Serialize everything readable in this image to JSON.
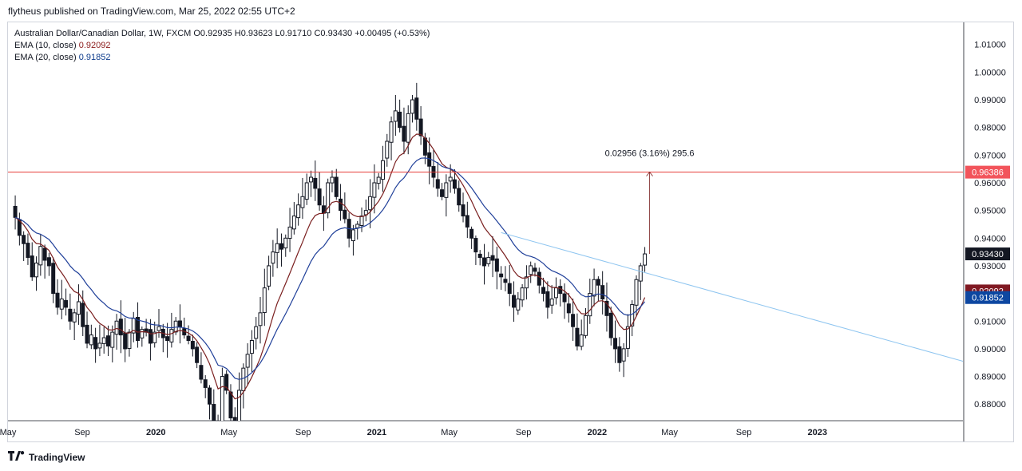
{
  "publisher_line": "flytheus published on TradingView.com, Mar 25, 2022 02:55 UTC+2",
  "legend": {
    "symbol": "Australian Dollar/Canadian Dollar, 1W, FXCM",
    "ohlc": "O0.92935  H0.93623  L0.91710  C0.93430  +0.00495 (+0.53%)",
    "ema10_label": "EMA (10, close)",
    "ema10_value": "0.92092",
    "ema20_label": "EMA (20, close)",
    "ema20_value": "0.91852"
  },
  "brand": "TradingView",
  "colors": {
    "up": "#131722",
    "down": "#131722",
    "ema10": "#7a1f1f",
    "ema20": "#1f3f99",
    "resistance": "#e53935",
    "trendline": "#8ec5f0",
    "measure": "#7a1f1f",
    "badge_price": "#131722",
    "badge_resistance": "#f2545b",
    "badge_ema10": "#801922",
    "badge_ema20": "#0d47a1"
  },
  "chart_data": {
    "type": "candlestick",
    "timeframe": "1W",
    "y_axis": {
      "ylim": [
        0.874,
        1.018
      ],
      "ticks": [
        "0.88000",
        "0.89000",
        "0.90000",
        "0.91000",
        "0.92000",
        "0.93000",
        "0.94000",
        "0.95000",
        "0.96000",
        "0.97000",
        "0.98000",
        "0.99000",
        "1.00000",
        "1.01000"
      ]
    },
    "x_axis": {
      "start": "2019-05-01",
      "end": "2023-08-30",
      "ticks": [
        {
          "label": "May",
          "date": "2019-05-01"
        },
        {
          "label": "Sep",
          "date": "2019-09-01"
        },
        {
          "label": "2020",
          "date": "2020-01-01"
        },
        {
          "label": "May",
          "date": "2020-05-01"
        },
        {
          "label": "Sep",
          "date": "2020-09-01"
        },
        {
          "label": "2021",
          "date": "2021-01-01"
        },
        {
          "label": "May",
          "date": "2021-05-01"
        },
        {
          "label": "Sep",
          "date": "2021-09-01"
        },
        {
          "label": "2022",
          "date": "2022-01-01"
        },
        {
          "label": "May",
          "date": "2022-05-01"
        },
        {
          "label": "Sep",
          "date": "2022-09-01"
        },
        {
          "label": "2023",
          "date": "2023-01-01"
        }
      ]
    },
    "closes": [
      0.9475,
      0.941,
      0.938,
      0.933,
      0.926,
      0.931,
      0.937,
      0.932,
      0.93,
      0.92,
      0.915,
      0.918,
      0.915,
      0.91,
      0.913,
      0.917,
      0.908,
      0.902,
      0.905,
      0.9,
      0.902,
      0.904,
      0.901,
      0.906,
      0.91,
      0.905,
      0.9,
      0.906,
      0.911,
      0.903,
      0.907,
      0.906,
      0.902,
      0.906,
      0.908,
      0.904,
      0.903,
      0.907,
      0.91,
      0.908,
      0.905,
      0.903,
      0.9,
      0.895,
      0.889,
      0.886,
      0.88,
      0.87,
      0.865,
      0.89,
      0.885,
      0.875,
      0.872,
      0.885,
      0.893,
      0.898,
      0.903,
      0.908,
      0.913,
      0.922,
      0.93,
      0.935,
      0.938,
      0.936,
      0.94,
      0.944,
      0.948,
      0.952,
      0.955,
      0.96,
      0.962,
      0.958,
      0.952,
      0.949,
      0.96,
      0.962,
      0.955,
      0.95,
      0.947,
      0.94,
      0.943,
      0.945,
      0.948,
      0.95,
      0.955,
      0.96,
      0.962,
      0.968,
      0.975,
      0.982,
      0.986,
      0.98,
      0.975,
      0.985,
      0.99,
      0.983,
      0.977,
      0.97,
      0.966,
      0.962,
      0.958,
      0.955,
      0.96,
      0.962,
      0.958,
      0.952,
      0.948,
      0.944,
      0.94,
      0.935,
      0.933,
      0.93,
      0.933,
      0.932,
      0.928,
      0.926,
      0.924,
      0.92,
      0.915,
      0.918,
      0.922,
      0.926,
      0.93,
      0.928,
      0.923,
      0.92,
      0.915,
      0.918,
      0.922,
      0.92,
      0.917,
      0.913,
      0.908,
      0.901,
      0.905,
      0.912,
      0.92,
      0.925,
      0.923,
      0.918,
      0.912,
      0.904,
      0.9,
      0.895,
      0.9,
      0.908,
      0.916,
      0.925,
      0.93,
      0.9343
    ],
    "last_close": 0.9343,
    "ema10_last": 0.92092,
    "ema20_last": 0.91852,
    "resistance_level": 0.96386,
    "trendline": {
      "from": {
        "date": "2021-07-26",
        "price": 0.942
      },
      "to": {
        "date": "2023-08-30",
        "price": 0.8955
      }
    },
    "measure": {
      "label": "0.02956 (3.16%) 295.6",
      "from_price": 0.9343,
      "to_price": 0.96386,
      "date": "2022-03-21"
    },
    "badges": [
      {
        "value": "0.96386",
        "price": 0.96386,
        "color_key": "badge_resistance"
      },
      {
        "value": "0.93430",
        "price": 0.9343,
        "color_key": "badge_price"
      },
      {
        "value": "0.92092",
        "price": 0.92092,
        "color_key": "badge_ema10"
      },
      {
        "value": "0.91852",
        "price": 0.91852,
        "color_key": "badge_ema20"
      }
    ]
  }
}
